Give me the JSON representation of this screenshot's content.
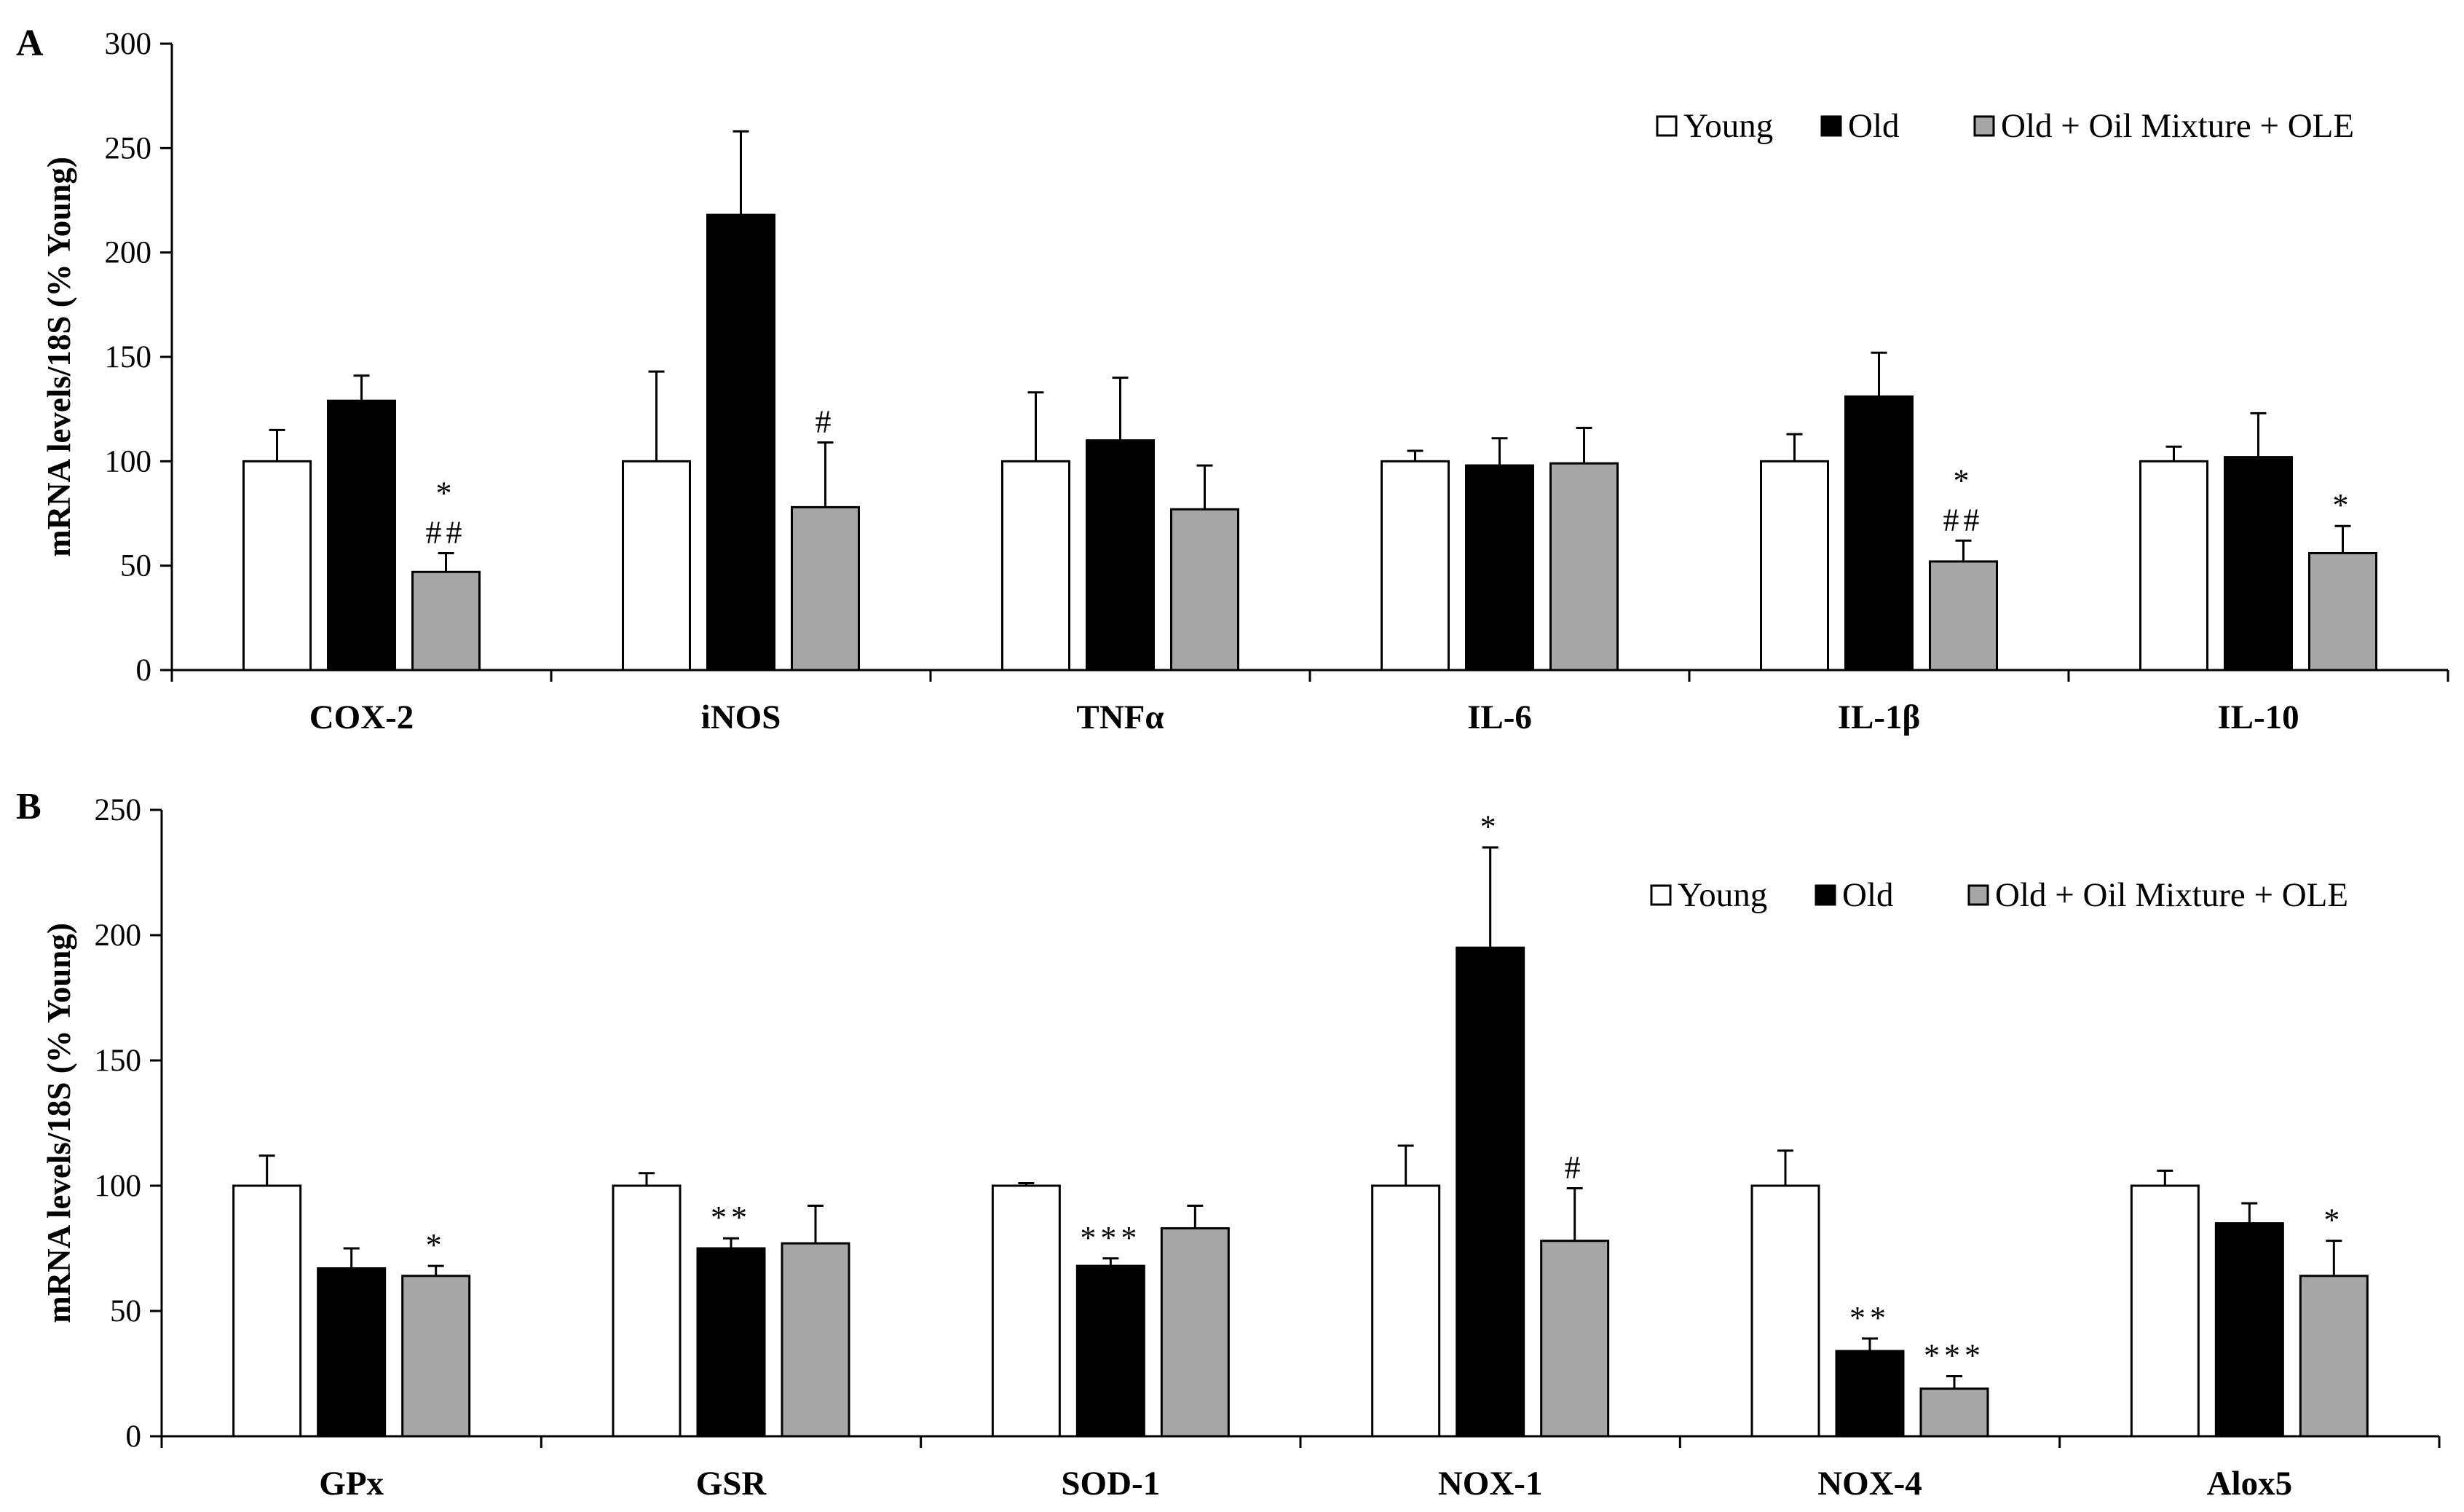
{
  "chart_data": [
    {
      "type": "bar",
      "panel_label": "A",
      "ylabel": "mRNA levels/18S (% Young)",
      "ylim": [
        0,
        300
      ],
      "yticks": [
        0,
        50,
        100,
        150,
        200,
        250,
        300
      ],
      "categories": [
        "COX-2",
        "iNOS",
        "TNFα",
        "IL-6",
        "IL-1β",
        "IL-10"
      ],
      "series": [
        {
          "name": "Young",
          "color": "#ffffff",
          "values": [
            100,
            100,
            100,
            100,
            100,
            100
          ],
          "errors": [
            15,
            43,
            33,
            5,
            13,
            7
          ]
        },
        {
          "name": "Old",
          "color": "#000000",
          "values": [
            129,
            218,
            110,
            98,
            131,
            102
          ],
          "errors": [
            12,
            40,
            30,
            13,
            21,
            21
          ]
        },
        {
          "name": "Old + Oil Mixture + OLE",
          "color": "#a6a6a6",
          "values": [
            47,
            78,
            77,
            99,
            52,
            56
          ],
          "errors": [
            9,
            31,
            21,
            17,
            10,
            13
          ]
        }
      ],
      "annotations": [
        {
          "category": "COX-2",
          "series": "Old + Oil Mixture + OLE",
          "lines": [
            "*",
            "##"
          ]
        },
        {
          "category": "iNOS",
          "series": "Old + Oil Mixture + OLE",
          "lines": [
            "#"
          ]
        },
        {
          "category": "IL-1β",
          "series": "Old + Oil Mixture + OLE",
          "lines": [
            "*",
            "##"
          ]
        },
        {
          "category": "IL-10",
          "series": "Old + Oil Mixture + OLE",
          "lines": [
            "*"
          ]
        }
      ],
      "legend": "top-right",
      "grid": false
    },
    {
      "type": "bar",
      "panel_label": "B",
      "ylabel": "mRNA levels/18S (% Young)",
      "ylim": [
        0,
        250
      ],
      "yticks": [
        0,
        50,
        100,
        150,
        200,
        250
      ],
      "categories": [
        "GPx",
        "GSR",
        "SOD-1",
        "NOX-1",
        "NOX-4",
        "Alox5"
      ],
      "series": [
        {
          "name": "Young",
          "color": "#ffffff",
          "values": [
            100,
            100,
            100,
            100,
            100,
            100
          ],
          "errors": [
            12,
            5,
            1,
            16,
            14,
            6
          ]
        },
        {
          "name": "Old",
          "color": "#000000",
          "values": [
            67,
            75,
            68,
            195,
            34,
            85
          ],
          "errors": [
            8,
            4,
            3,
            40,
            5,
            8
          ]
        },
        {
          "name": "Old + Oil Mixture + OLE",
          "color": "#a6a6a6",
          "values": [
            64,
            77,
            83,
            78,
            19,
            64
          ],
          "errors": [
            4,
            15,
            9,
            21,
            5,
            14
          ]
        }
      ],
      "annotations": [
        {
          "category": "GPx",
          "series": "Old + Oil Mixture + OLE",
          "lines": [
            "*"
          ]
        },
        {
          "category": "GSR",
          "series": "Old",
          "lines": [
            "**"
          ]
        },
        {
          "category": "SOD-1",
          "series": "Old",
          "lines": [
            "***"
          ]
        },
        {
          "category": "NOX-1",
          "series": "Old",
          "lines": [
            "*"
          ]
        },
        {
          "category": "NOX-1",
          "series": "Old + Oil Mixture + OLE",
          "lines": [
            "#"
          ]
        },
        {
          "category": "NOX-4",
          "series": "Old",
          "lines": [
            "**"
          ]
        },
        {
          "category": "NOX-4",
          "series": "Old + Oil Mixture + OLE",
          "lines": [
            "***"
          ]
        },
        {
          "category": "Alox5",
          "series": "Old + Oil Mixture + OLE",
          "lines": [
            "*"
          ]
        }
      ],
      "legend": "top-right",
      "grid": false
    }
  ]
}
